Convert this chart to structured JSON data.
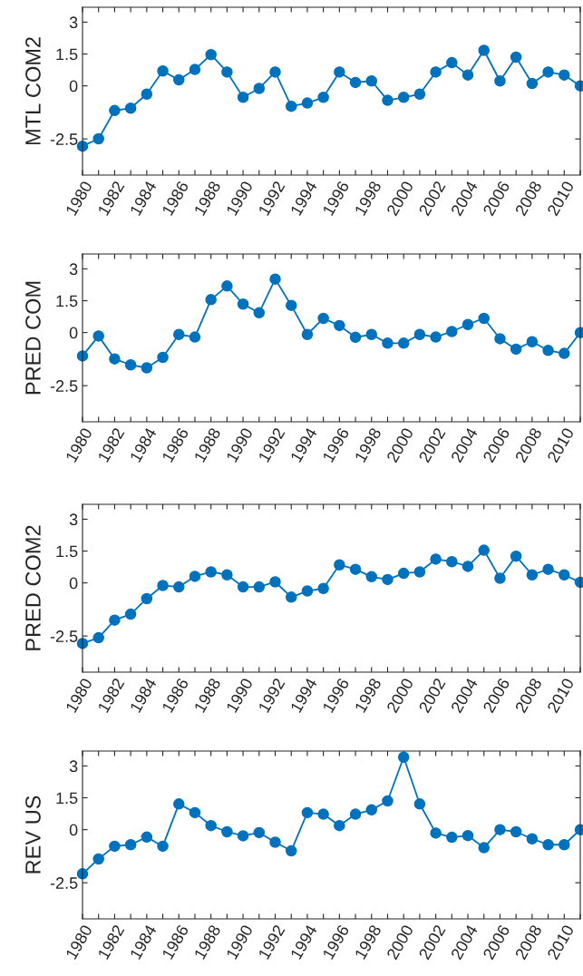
{
  "chart_data": [
    {
      "type": "line",
      "ylabel": "MTL COM2",
      "x": [
        1980,
        1981,
        1982,
        1983,
        1984,
        1985,
        1986,
        1987,
        1988,
        1989,
        1990,
        1991,
        1992,
        1993,
        1994,
        1995,
        1996,
        1997,
        1998,
        1999,
        2000,
        2001,
        2002,
        2003,
        2004,
        2005,
        2006,
        2007,
        2008,
        2009,
        2010,
        2011
      ],
      "series": [
        {
          "color": "#0072bd",
          "values": [
            -2.84,
            -2.49,
            -1.16,
            -1.05,
            -0.39,
            0.7,
            0.28,
            0.77,
            1.47,
            0.65,
            -0.54,
            -0.12,
            0.65,
            -0.96,
            -0.81,
            -0.54,
            0.65,
            0.16,
            0.23,
            -0.68,
            -0.54,
            -0.39,
            0.65,
            1.09,
            0.51,
            1.67,
            0.23,
            1.35,
            0.11,
            0.65,
            0.51,
            0.0
          ]
        }
      ],
      "xlim": [
        1980,
        2011
      ],
      "xticks": [
        1980,
        {
          "value": 1981,
          "label": null
        },
        1982,
        {
          "value": 1983,
          "label": null
        },
        1984,
        {
          "value": 1985,
          "label": null
        },
        1986,
        {
          "value": 1987,
          "label": null
        },
        1988,
        {
          "value": 1989,
          "label": null
        },
        1990,
        {
          "value": 1991,
          "label": null
        },
        1992,
        {
          "value": 1993,
          "label": null
        },
        1994,
        {
          "value": 1995,
          "label": null
        },
        1996,
        {
          "value": 1997,
          "label": null
        },
        1998,
        {
          "value": 1999,
          "label": null
        },
        2000,
        {
          "value": 2001,
          "label": null
        },
        2002,
        {
          "value": 2003,
          "label": null
        },
        2004,
        {
          "value": 2005,
          "label": null
        },
        2006,
        {
          "value": 2007,
          "label": null
        },
        2008,
        {
          "value": 2009,
          "label": null
        },
        2010,
        {
          "value": 2011,
          "label": null
        }
      ],
      "ylim": [
        -4.2,
        3.7
      ],
      "yticks": [
        -2.5,
        0,
        1.5,
        3
      ],
      "marker": "circle",
      "line_style": "solid",
      "grid": false
    },
    {
      "type": "line",
      "ylabel": "PRED COM",
      "x": [
        1980,
        1981,
        1982,
        1983,
        1984,
        1985,
        1986,
        1987,
        1988,
        1989,
        1990,
        1991,
        1992,
        1993,
        1994,
        1995,
        1996,
        1997,
        1998,
        1999,
        2000,
        2001,
        2002,
        2003,
        2004,
        2005,
        2006,
        2007,
        2008,
        2009,
        2010,
        2011
      ],
      "series": [
        {
          "color": "#0072bd",
          "values": [
            -1.1,
            -0.16,
            -1.24,
            -1.52,
            -1.66,
            -1.17,
            -0.09,
            -0.21,
            1.55,
            2.19,
            1.34,
            0.93,
            2.52,
            1.28,
            -0.09,
            0.67,
            0.33,
            -0.22,
            -0.09,
            -0.5,
            -0.5,
            -0.09,
            -0.21,
            0.05,
            0.38,
            0.67,
            -0.29,
            -0.78,
            -0.43,
            -0.84,
            -0.98,
            0.0
          ]
        }
      ],
      "xlim": [
        1980,
        2011
      ],
      "xticks": [
        1980,
        {
          "value": 1981,
          "label": null
        },
        1982,
        {
          "value": 1983,
          "label": null
        },
        1984,
        {
          "value": 1985,
          "label": null
        },
        1986,
        {
          "value": 1987,
          "label": null
        },
        1988,
        {
          "value": 1989,
          "label": null
        },
        1990,
        {
          "value": 1991,
          "label": null
        },
        1992,
        {
          "value": 1993,
          "label": null
        },
        1994,
        {
          "value": 1995,
          "label": null
        },
        1996,
        {
          "value": 1997,
          "label": null
        },
        1998,
        {
          "value": 1999,
          "label": null
        },
        2000,
        {
          "value": 2001,
          "label": null
        },
        2002,
        {
          "value": 2003,
          "label": null
        },
        2004,
        {
          "value": 2005,
          "label": null
        },
        2006,
        {
          "value": 2007,
          "label": null
        },
        2008,
        {
          "value": 2009,
          "label": null
        },
        2010,
        {
          "value": 2011,
          "label": null
        }
      ],
      "ylim": [
        -4.2,
        3.7
      ],
      "yticks": [
        -2.5,
        0,
        1.5,
        3
      ],
      "marker": "circle",
      "line_style": "solid",
      "grid": false
    },
    {
      "type": "line",
      "ylabel": "PRED COM2",
      "x": [
        1980,
        1981,
        1982,
        1983,
        1984,
        1985,
        1986,
        1987,
        1988,
        1989,
        1990,
        1991,
        1992,
        1993,
        1994,
        1995,
        1996,
        1997,
        1998,
        1999,
        2000,
        2001,
        2002,
        2003,
        2004,
        2005,
        2006,
        2007,
        2008,
        2009,
        2010,
        2011
      ],
      "series": [
        {
          "color": "#0072bd",
          "values": [
            -2.85,
            -2.58,
            -1.75,
            -1.47,
            -0.74,
            -0.12,
            -0.19,
            0.31,
            0.52,
            0.38,
            -0.19,
            -0.19,
            0.05,
            -0.67,
            -0.38,
            -0.26,
            0.85,
            0.64,
            0.29,
            0.16,
            0.45,
            0.52,
            1.12,
            1.0,
            0.78,
            1.54,
            0.22,
            1.26,
            0.38,
            0.64,
            0.38,
            0.03
          ]
        }
      ],
      "xlim": [
        1980,
        2011
      ],
      "xticks": [
        1980,
        {
          "value": 1981,
          "label": null
        },
        1982,
        {
          "value": 1983,
          "label": null
        },
        1984,
        {
          "value": 1985,
          "label": null
        },
        1986,
        {
          "value": 1987,
          "label": null
        },
        1988,
        {
          "value": 1989,
          "label": null
        },
        1990,
        {
          "value": 1991,
          "label": null
        },
        1992,
        {
          "value": 1993,
          "label": null
        },
        1994,
        {
          "value": 1995,
          "label": null
        },
        1996,
        {
          "value": 1997,
          "label": null
        },
        1998,
        {
          "value": 1999,
          "label": null
        },
        2000,
        {
          "value": 2001,
          "label": null
        },
        2002,
        {
          "value": 2003,
          "label": null
        },
        2004,
        {
          "value": 2005,
          "label": null
        },
        2006,
        {
          "value": 2007,
          "label": null
        },
        2008,
        {
          "value": 2009,
          "label": null
        },
        2010,
        {
          "value": 2011,
          "label": null
        }
      ],
      "ylim": [
        -4.2,
        3.7
      ],
      "yticks": [
        -2.5,
        0,
        1.5,
        3
      ],
      "marker": "circle",
      "line_style": "solid",
      "grid": false
    },
    {
      "type": "line",
      "ylabel": "REV US",
      "x": [
        1980,
        1981,
        1982,
        1983,
        1984,
        1985,
        1986,
        1987,
        1988,
        1989,
        1990,
        1991,
        1992,
        1993,
        1994,
        1995,
        1996,
        1997,
        1998,
        1999,
        2000,
        2001,
        2002,
        2003,
        2004,
        2005,
        2006,
        2007,
        2008,
        2009,
        2010,
        2011
      ],
      "series": [
        {
          "color": "#0072bd",
          "values": [
            -2.08,
            -1.38,
            -0.78,
            -0.71,
            -0.35,
            -0.78,
            1.21,
            0.8,
            0.19,
            -0.1,
            -0.29,
            -0.14,
            -0.59,
            -1.0,
            0.8,
            0.73,
            0.19,
            0.73,
            0.93,
            1.35,
            3.41,
            1.21,
            -0.16,
            -0.36,
            -0.28,
            -0.85,
            0.0,
            -0.1,
            -0.43,
            -0.71,
            -0.71,
            0.0
          ]
        }
      ],
      "xlim": [
        1980,
        2011
      ],
      "xticks": [
        1980,
        {
          "value": 1981,
          "label": null
        },
        1982,
        {
          "value": 1983,
          "label": null
        },
        1984,
        {
          "value": 1985,
          "label": null
        },
        1986,
        {
          "value": 1987,
          "label": null
        },
        1988,
        {
          "value": 1989,
          "label": null
        },
        1990,
        {
          "value": 1991,
          "label": null
        },
        1992,
        {
          "value": 1993,
          "label": null
        },
        1994,
        {
          "value": 1995,
          "label": null
        },
        1996,
        {
          "value": 1997,
          "label": null
        },
        1998,
        {
          "value": 1999,
          "label": null
        },
        2000,
        {
          "value": 2001,
          "label": null
        },
        2002,
        {
          "value": 2003,
          "label": null
        },
        2004,
        {
          "value": 2005,
          "label": null
        },
        2006,
        {
          "value": 2007,
          "label": null
        },
        2008,
        {
          "value": 2009,
          "label": null
        },
        2010,
        {
          "value": 2011,
          "label": null
        }
      ],
      "ylim": [
        -4.2,
        3.7
      ],
      "yticks": [
        -2.5,
        0,
        1.5,
        3
      ],
      "marker": "circle",
      "line_style": "solid",
      "grid": false
    }
  ]
}
